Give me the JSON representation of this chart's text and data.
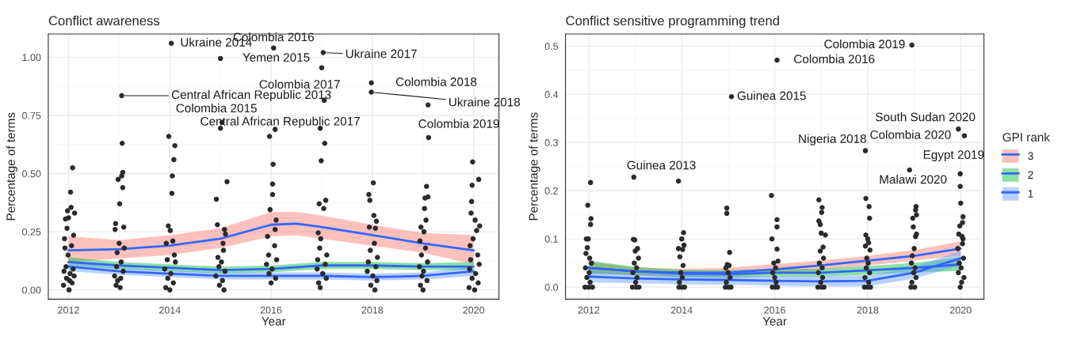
{
  "chart_data": [
    {
      "type": "scatter",
      "title": "Conflict awareness",
      "xlabel": "Year",
      "ylabel": "Percentage of terms",
      "xlim": [
        2011.6,
        2020.5
      ],
      "xticks": [
        2012,
        2014,
        2016,
        2018,
        2020
      ],
      "ylim": [
        -0.04,
        1.1
      ],
      "yticks": [
        {
          "value": 0,
          "label": "0.00"
        },
        {
          "value": 0.25,
          "label": "0.25"
        },
        {
          "value": 0.5,
          "label": "0.50"
        },
        {
          "value": 0.75,
          "label": "0.75"
        },
        {
          "value": 1,
          "label": "1.00"
        }
      ],
      "grid": true,
      "series": [
        {
          "type": "scatter",
          "color": "#2b2b2b",
          "marker": "circle",
          "x": [
            2012.08,
            2012.04,
            2012.05,
            2011.98,
            2012.12,
            2012.0,
            2011.94,
            2011.97,
            2012.1,
            2011.92,
            2012.06,
            2011.93,
            2011.99,
            2011.95,
            2012.09,
            2011.91,
            2012.03,
            2012.11,
            2011.96,
            2012.02,
            2012.07,
            2011.9,
            2012.01,
            2013.05,
            2013.06,
            2013.07,
            2013.05,
            2012.98,
            2013.07,
            2013.01,
            2012.93,
            2013.09,
            2012.92,
            2013.0,
            2013.1,
            2012.96,
            2013.04,
            2012.95,
            2013.08,
            2012.91,
            2013.03,
            2012.97,
            2012.94,
            2013.02,
            2014.03,
            2013.98,
            2014.1,
            2014.08,
            2014.05,
            2014.04,
            2013.97,
            2014.01,
            2014.06,
            2013.93,
            2014.09,
            2013.95,
            2014.11,
            2013.9,
            2014.02,
            2013.96,
            2014.07,
            2013.92,
            2014.0,
            2015.0,
            2015.03,
            2015.0,
            2015.13,
            2014.92,
            2014.94,
            2015.08,
            2015.1,
            2015.05,
            2015.06,
            2014.95,
            2015.02,
            2014.97,
            2015.09,
            2014.91,
            2015.04,
            2014.98,
            2015.07,
            2016.05,
            2016.08,
            2015.97,
            2016.04,
            2016.03,
            2016.03,
            2015.98,
            2016.1,
            2016.08,
            2015.93,
            2016.07,
            2015.95,
            2016.11,
            2015.91,
            2016.02,
            2015.96,
            2016.09,
            2016.0,
            2017.03,
            2017.0,
            2017.05,
            2016.97,
            2017.06,
            2016.99,
            2017.08,
            2016.95,
            2017.04,
            2016.93,
            2016.98,
            2016.96,
            2017.1,
            2016.92,
            2017.07,
            2016.91,
            2017.02,
            2017.09,
            2016.94,
            2016.97,
            2017.98,
            2017.98,
            2018.02,
            2017.93,
            2017.95,
            2018.03,
            2018.08,
            2017.94,
            2018.06,
            2018.04,
            2017.96,
            2018.1,
            2017.92,
            2018.07,
            2017.9,
            2018.01,
            2018.09,
            2017.97,
            2018.05,
            2019.1,
            2019.11,
            2019.07,
            2019.1,
            2019.04,
            2019.03,
            2019.06,
            2018.96,
            2019.02,
            2018.94,
            2019.05,
            2018.97,
            2019.09,
            2018.93,
            2019.01,
            2018.98,
            2019.08,
            2018.95,
            2019.0,
            2019.98,
            2020.1,
            2019.97,
            2019.96,
            2019.95,
            2020.03,
            2020.12,
            2020.06,
            2019.99,
            2019.93,
            2020.08,
            2019.94,
            2020.11,
            2019.92,
            2020.04,
            2019.97,
            2020.09,
            2019.91,
            2020.02
          ],
          "values": [
            0.525,
            0.42,
            0.355,
            0.34,
            0.33,
            0.31,
            0.305,
            0.265,
            0.235,
            0.22,
            0.19,
            0.18,
            0.15,
            0.1,
            0.09,
            0.08,
            0.07,
            0.06,
            0.05,
            0.04,
            0.03,
            0.02,
            0.0,
            0.835,
            0.63,
            0.505,
            0.49,
            0.475,
            0.44,
            0.37,
            0.285,
            0.27,
            0.26,
            0.2,
            0.18,
            0.16,
            0.12,
            0.1,
            0.08,
            0.06,
            0.05,
            0.04,
            0.02,
            0.01,
            1.06,
            0.66,
            0.62,
            0.56,
            0.49,
            0.415,
            0.275,
            0.255,
            0.21,
            0.2,
            0.15,
            0.13,
            0.12,
            0.09,
            0.07,
            0.05,
            0.03,
            0.01,
            0.0,
            0.995,
            0.72,
            0.695,
            0.465,
            0.39,
            0.28,
            0.26,
            0.24,
            0.2,
            0.17,
            0.14,
            0.12,
            0.1,
            0.08,
            0.06,
            0.04,
            0.02,
            0.0,
            1.04,
            0.69,
            0.66,
            0.54,
            0.455,
            0.41,
            0.345,
            0.3,
            0.26,
            0.23,
            0.19,
            0.15,
            0.13,
            0.11,
            0.09,
            0.07,
            0.05,
            0.03,
            1.02,
            0.955,
            0.815,
            0.695,
            0.63,
            0.555,
            0.385,
            0.37,
            0.35,
            0.245,
            0.22,
            0.18,
            0.15,
            0.13,
            0.11,
            0.09,
            0.07,
            0.05,
            0.03,
            0.01,
            0.89,
            0.85,
            0.46,
            0.41,
            0.385,
            0.32,
            0.295,
            0.27,
            0.265,
            0.2,
            0.17,
            0.14,
            0.12,
            0.1,
            0.08,
            0.06,
            0.04,
            0.02,
            0.0,
            0.795,
            0.655,
            0.445,
            0.4,
            0.395,
            0.35,
            0.3,
            0.27,
            0.25,
            0.21,
            0.18,
            0.15,
            0.12,
            0.1,
            0.08,
            0.06,
            0.04,
            0.02,
            0.0,
            0.55,
            0.475,
            0.45,
            0.38,
            0.33,
            0.3,
            0.275,
            0.255,
            0.22,
            0.19,
            0.15,
            0.13,
            0.11,
            0.09,
            0.07,
            0.05,
            0.03,
            0.01,
            0.0
          ]
        },
        {
          "type": "line",
          "color": "#3366ff",
          "colors": [
            "#f8766d",
            "#f8766d",
            "#f8766d",
            "#f8766d",
            "#f8766d",
            "#f8766d",
            "#f8766d",
            "#f8766d",
            "#f8766d",
            "#f8766d"
          ],
          "x": [
            2012,
            2013,
            2014,
            2015,
            2016,
            2016.5,
            2017,
            2018,
            2019,
            2020
          ],
          "values": [
            0.17,
            0.175,
            0.19,
            0.22,
            0.28,
            0.285,
            0.27,
            0.235,
            0.2,
            0.17
          ],
          "lower": [
            0.12,
            0.135,
            0.15,
            0.18,
            0.23,
            0.235,
            0.22,
            0.19,
            0.16,
            0.11
          ],
          "upper": [
            0.23,
            0.215,
            0.235,
            0.265,
            0.335,
            0.335,
            0.32,
            0.28,
            0.245,
            0.235
          ]
        },
        {
          "type": "line",
          "color": "#3366ff",
          "colors": [
            "#00ba38",
            "#00ba38",
            "#00ba38",
            "#00ba38",
            "#00ba38",
            "#00ba38",
            "#00ba38",
            "#00ba38",
            "#00ba38"
          ],
          "x": [
            2012,
            2013,
            2014,
            2015,
            2016,
            2017,
            2018,
            2019,
            2020
          ],
          "values": [
            0.12,
            0.105,
            0.095,
            0.085,
            0.09,
            0.105,
            0.105,
            0.1,
            0.1
          ],
          "lower": [
            0.105,
            0.09,
            0.08,
            0.07,
            0.075,
            0.09,
            0.09,
            0.085,
            0.085
          ],
          "upper": [
            0.14,
            0.12,
            0.11,
            0.1,
            0.105,
            0.12,
            0.12,
            0.115,
            0.12
          ]
        },
        {
          "type": "line",
          "color": "#3366ff",
          "colors": [
            "#619cff",
            "#619cff",
            "#619cff",
            "#619cff",
            "#619cff",
            "#619cff",
            "#619cff",
            "#619cff",
            "#619cff"
          ],
          "x": [
            2012,
            2013,
            2014,
            2015,
            2016,
            2017,
            2018,
            2019,
            2020
          ],
          "values": [
            0.1,
            0.08,
            0.07,
            0.06,
            0.06,
            0.06,
            0.055,
            0.06,
            0.08
          ],
          "lower": [
            0.08,
            0.065,
            0.055,
            0.045,
            0.045,
            0.045,
            0.04,
            0.045,
            0.06
          ],
          "upper": [
            0.12,
            0.095,
            0.085,
            0.075,
            0.075,
            0.075,
            0.07,
            0.075,
            0.1
          ]
        }
      ],
      "annotations": [
        {
          "text": "Ukraine 2014",
          "x": 2014.03,
          "y": 1.06
        },
        {
          "text": "Colombia 2016",
          "x": 2016.05,
          "y": 1.04
        },
        {
          "text": "Yemen 2015",
          "x": 2015.0,
          "y": 0.995
        },
        {
          "text": "Ukraine 2017",
          "x": 2017.03,
          "y": 1.02
        },
        {
          "text": "Colombia 2017",
          "x": 2017.0,
          "y": 0.955
        },
        {
          "text": "Colombia 2018",
          "x": 2017.98,
          "y": 0.89
        },
        {
          "text": "Central African Republic 2013",
          "x": 2013.05,
          "y": 0.835
        },
        {
          "text": "Ukraine 2018",
          "x": 2017.98,
          "y": 0.85
        },
        {
          "text": "Central African Republic 2017",
          "x": 2017.05,
          "y": 0.815
        },
        {
          "text": "Colombia 2015",
          "x": 2015.03,
          "y": 0.72
        },
        {
          "text": "Colombia 2019",
          "x": 2019.1,
          "y": 0.795
        }
      ]
    },
    {
      "type": "scatter",
      "title": "Conflict sensitive programming trend",
      "xlabel": "Year",
      "ylabel": "Percentage of terms",
      "legend_title": "GPI rank",
      "legend": "right",
      "xlim": [
        2011.5,
        2020.5
      ],
      "xticks": [
        2012,
        2014,
        2016,
        2018,
        2020
      ],
      "ylim": [
        -0.025,
        0.525
      ],
      "yticks": [
        {
          "value": 0,
          "label": "0.0"
        },
        0.1,
        0.2,
        0.3,
        0.4,
        0.5
      ],
      "grid": true,
      "series": [
        {
          "type": "scatter",
          "color": "#2b2b2b",
          "marker": "circle",
          "x": [
            2012.04,
            2011.98,
            2012.05,
            2012.04,
            2011.95,
            2011.99,
            2011.97,
            2011.94,
            2012.02,
            2012.06,
            2011.93,
            2012.01,
            2011.96,
            2012.03,
            2011.92,
            2012.0,
            2012.08,
            2012.97,
            2012.96,
            2012.99,
            2013.05,
            2013.0,
            2013.07,
            2012.98,
            2013.03,
            2012.95,
            2013.04,
            2013.01,
            2012.94,
            2013.02,
            2013.08,
            2013.93,
            2014.04,
            2014.0,
            2014.05,
            2013.93,
            2014.02,
            2013.96,
            2014.03,
            2013.98,
            2014.01,
            2013.95,
            2013.94,
            2014.0,
            2014.06,
            2015.07,
            2014.97,
            2014.97,
            2015.03,
            2014.98,
            2015.02,
            2014.95,
            2015.0,
            2015.04,
            2014.96,
            2014.94,
            2015.01,
            2015.06,
            2016.05,
            2015.93,
            2016.05,
            2016.05,
            2015.94,
            2016.05,
            2016.07,
            2015.98,
            2016.02,
            2015.96,
            2016.0,
            2016.03,
            2015.95,
            2016.01,
            2016.06,
            2016.95,
            2017.02,
            2017.01,
            2016.95,
            2016.98,
            2017.0,
            2017.09,
            2017.04,
            2016.98,
            2017.05,
            2016.96,
            2017.02,
            2016.94,
            2017.03,
            2016.99,
            2016.93,
            2017.01,
            2017.06,
            2017.95,
            2017.96,
            2018.03,
            2018.04,
            2017.96,
            2018.0,
            2018.02,
            2017.95,
            2018.05,
            2017.98,
            2018.01,
            2017.97,
            2018.04,
            2017.94,
            2018.02,
            2017.93,
            2018.0,
            2018.06,
            2018.95,
            2018.9,
            2019.04,
            2019.03,
            2019.05,
            2018.97,
            2018.98,
            2019.05,
            2019.03,
            2019.0,
            2018.96,
            2018.94,
            2019.02,
            2018.99,
            2019.04,
            2018.95,
            2019.01,
            2018.93,
            2019.95,
            2020.08,
            2019.99,
            2019.99,
            2020.0,
            2020.05,
            2020.04,
            2019.98,
            2019.96,
            2020.03,
            2020.05,
            2020.04,
            2019.94,
            2020.06,
            2019.97,
            2020.01,
            2019.95,
            2020.07,
            2020.02,
            2019.99
          ],
          "values": [
            0.217,
            0.17,
            0.142,
            0.13,
            0.1,
            0.1,
            0.082,
            0.07,
            0.06,
            0.05,
            0.04,
            0.03,
            0.02,
            0.01,
            0.0,
            0.0,
            0.0,
            0.228,
            0.099,
            0.098,
            0.08,
            0.075,
            0.06,
            0.05,
            0.04,
            0.03,
            0.02,
            0.01,
            0.0,
            0.0,
            0.0,
            0.22,
            0.113,
            0.1,
            0.087,
            0.08,
            0.078,
            0.063,
            0.045,
            0.03,
            0.02,
            0.01,
            0.0,
            0.0,
            0.0,
            0.395,
            0.164,
            0.153,
            0.072,
            0.047,
            0.045,
            0.04,
            0.03,
            0.02,
            0.01,
            0.0,
            0.0,
            0.0,
            0.471,
            0.19,
            0.14,
            0.125,
            0.1,
            0.079,
            0.054,
            0.05,
            0.04,
            0.03,
            0.02,
            0.01,
            0.0,
            0.0,
            0.0,
            0.181,
            0.165,
            0.155,
            0.137,
            0.13,
            0.112,
            0.108,
            0.083,
            0.075,
            0.06,
            0.05,
            0.04,
            0.03,
            0.02,
            0.01,
            0.0,
            0.0,
            0.0,
            0.283,
            0.184,
            0.167,
            0.143,
            0.108,
            0.1,
            0.092,
            0.085,
            0.077,
            0.06,
            0.05,
            0.04,
            0.03,
            0.02,
            0.01,
            0.0,
            0.0,
            0.0,
            0.502,
            0.243,
            0.167,
            0.16,
            0.15,
            0.143,
            0.125,
            0.11,
            0.105,
            0.08,
            0.065,
            0.05,
            0.04,
            0.03,
            0.02,
            0.01,
            0.0,
            0.0,
            0.328,
            0.314,
            0.235,
            0.209,
            0.174,
            0.146,
            0.134,
            0.127,
            0.11,
            0.105,
            0.1,
            0.09,
            0.08,
            0.06,
            0.05,
            0.04,
            0.03,
            0.02,
            0.01,
            0.0
          ]
        },
        {
          "type": "line",
          "name": "3",
          "color": "#3366ff",
          "colors": [
            "#f8766d",
            "#f8766d",
            "#f8766d",
            "#f8766d",
            "#f8766d",
            "#f8766d",
            "#f8766d",
            "#f8766d",
            "#f8766d"
          ],
          "x": [
            2012,
            2013,
            2014,
            2015,
            2016,
            2017,
            2018,
            2019,
            2020
          ],
          "values": [
            0.04,
            0.033,
            0.03,
            0.03,
            0.037,
            0.045,
            0.055,
            0.065,
            0.08
          ],
          "lower": [
            0.028,
            0.025,
            0.022,
            0.022,
            0.028,
            0.036,
            0.045,
            0.055,
            0.066
          ],
          "upper": [
            0.052,
            0.041,
            0.038,
            0.04,
            0.048,
            0.055,
            0.065,
            0.077,
            0.095
          ]
        },
        {
          "type": "line",
          "name": "2",
          "color": "#3366ff",
          "colors": [
            "#00ba38",
            "#00ba38",
            "#00ba38",
            "#00ba38",
            "#00ba38",
            "#00ba38",
            "#00ba38",
            "#00ba38",
            "#00ba38"
          ],
          "x": [
            2012,
            2013,
            2014,
            2015,
            2016,
            2017,
            2018,
            2019,
            2020
          ],
          "values": [
            0.04,
            0.033,
            0.028,
            0.027,
            0.03,
            0.03,
            0.035,
            0.04,
            0.047
          ],
          "lower": [
            0.028,
            0.025,
            0.02,
            0.019,
            0.022,
            0.022,
            0.026,
            0.03,
            0.034
          ],
          "upper": [
            0.055,
            0.042,
            0.036,
            0.035,
            0.038,
            0.038,
            0.044,
            0.05,
            0.062
          ]
        },
        {
          "type": "line",
          "name": "1",
          "color": "#3366ff",
          "colors": [
            "#619cff",
            "#619cff",
            "#619cff",
            "#619cff",
            "#619cff",
            "#619cff",
            "#619cff",
            "#619cff",
            "#619cff"
          ],
          "x": [
            2012,
            2013,
            2014,
            2015,
            2016,
            2017,
            2018,
            2019,
            2020
          ],
          "values": [
            0.022,
            0.018,
            0.016,
            0.015,
            0.013,
            0.012,
            0.013,
            0.03,
            0.06
          ],
          "lower": [
            0.01,
            0.008,
            0.006,
            0.005,
            0.003,
            0.001,
            0.002,
            0.018,
            0.045
          ],
          "upper": [
            0.035,
            0.028,
            0.026,
            0.025,
            0.023,
            0.023,
            0.025,
            0.042,
            0.075
          ]
        }
      ],
      "annotations": [
        {
          "text": "Colombia 2019",
          "x": 2018.95,
          "y": 0.502
        },
        {
          "text": "Colombia 2016",
          "x": 2016.05,
          "y": 0.471
        },
        {
          "text": "Guinea 2015",
          "x": 2015.07,
          "y": 0.395
        },
        {
          "text": "South Sudan 2020",
          "x": 2019.95,
          "y": 0.328
        },
        {
          "text": "Colombia 2020",
          "x": 2020.08,
          "y": 0.314
        },
        {
          "text": "Nigeria 2018",
          "x": 2017.95,
          "y": 0.283
        },
        {
          "text": "Egypt 2019",
          "x": 2018.9,
          "y": 0.243
        },
        {
          "text": "Malawi 2020",
          "x": 2019.99,
          "y": 0.235
        },
        {
          "text": "Guinea 2013",
          "x": 2012.97,
          "y": 0.228
        }
      ]
    }
  ]
}
